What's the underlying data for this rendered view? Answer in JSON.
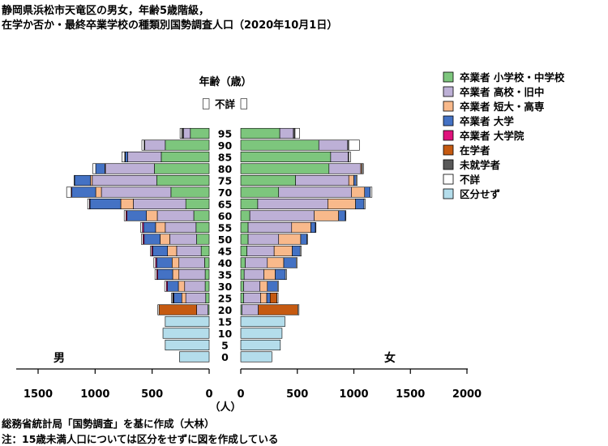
{
  "chart_data": {
    "type": "bar",
    "orientation": "horizontal-stacked-pyramid",
    "title_lines": [
      "静岡県浜松市天竜区の男女，年齢5歳階級，",
      "在学か否か・最終卒業学校の種類別国勢調査人口（2020年10月1日）"
    ],
    "age_axis_title": "年齢（歳）",
    "xlabel": "（人）",
    "left_label": "男",
    "right_label": "女",
    "notes": [
      "総務省統計局「国勢調査」を基に作成（大林）",
      "注：15歳未満人口については区分をせずに図を作成している"
    ],
    "x_ticks_left": [
      "1500",
      "1000",
      "500",
      "0"
    ],
    "x_ticks_right": [
      "0",
      "500",
      "1000",
      "1500",
      "2000"
    ],
    "xlim_left": [
      1700,
      0
    ],
    "xlim_right": [
      0,
      2000
    ],
    "categories": [
      "0",
      "5",
      "10",
      "15",
      "20",
      "25",
      "30",
      "35",
      "40",
      "45",
      "50",
      "55",
      "60",
      "65",
      "70",
      "75",
      "80",
      "85",
      "90",
      "95",
      "不詳"
    ],
    "age_labels": [
      "0",
      "5",
      "10",
      "15",
      "20",
      "25",
      "30",
      "35",
      "40",
      "45",
      "50",
      "55",
      "60",
      "65",
      "70",
      "75",
      "80",
      "85",
      "90",
      "95",
      "不詳"
    ],
    "series": [
      {
        "name": "卒業者 小学校・中学校",
        "color": "#7DC67D",
        "male": [
          0,
          0,
          0,
          0,
          10,
          30,
          35,
          35,
          40,
          70,
          110,
          115,
          135,
          205,
          335,
          460,
          480,
          420,
          385,
          165,
          0
        ],
        "female": [
          0,
          0,
          0,
          0,
          10,
          25,
          25,
          30,
          40,
          55,
          65,
          65,
          80,
          150,
          335,
          485,
          780,
          795,
          690,
          345,
          0
        ]
      },
      {
        "name": "卒業者 高校・旧中",
        "color": "#BDB0D6",
        "male": [
          0,
          0,
          0,
          0,
          100,
          175,
          180,
          230,
          225,
          215,
          235,
          270,
          320,
          460,
          610,
          565,
          430,
          295,
          180,
          60,
          0
        ],
        "female": [
          0,
          0,
          0,
          0,
          145,
          150,
          145,
          175,
          195,
          240,
          270,
          385,
          570,
          620,
          645,
          470,
          280,
          155,
          255,
          120,
          0
        ],
        "female_note": "95 row second segment"
      },
      {
        "name": "卒業者 短大・高専",
        "color": "#F8B98B",
        "male": [
          0,
          0,
          0,
          0,
          0,
          35,
          55,
          55,
          60,
          80,
          85,
          85,
          95,
          110,
          50,
          15,
          5,
          0,
          0,
          0,
          0
        ],
        "female": [
          0,
          0,
          0,
          0,
          0,
          55,
          65,
          100,
          145,
          160,
          195,
          170,
          215,
          245,
          115,
          45,
          10,
          0,
          0,
          0,
          0
        ]
      },
      {
        "name": "卒業者 大学",
        "color": "#4472C4",
        "male": [
          0,
          0,
          0,
          0,
          0,
          70,
          95,
          130,
          135,
          130,
          140,
          105,
          170,
          270,
          210,
          140,
          80,
          20,
          0,
          0,
          0
        ],
        "female": [
          0,
          0,
          0,
          0,
          0,
          30,
          90,
          90,
          110,
          70,
          55,
          40,
          60,
          75,
          50,
          20,
          5,
          0,
          0,
          0,
          0
        ]
      },
      {
        "name": "卒業者 大学院",
        "color": "#E0127C",
        "male": [
          0,
          0,
          0,
          0,
          0,
          5,
          10,
          10,
          10,
          10,
          10,
          10,
          10,
          5,
          5,
          0,
          0,
          0,
          0,
          0,
          0
        ],
        "female": [
          0,
          0,
          0,
          0,
          0,
          0,
          0,
          0,
          0,
          0,
          0,
          0,
          0,
          0,
          0,
          0,
          0,
          0,
          0,
          0,
          0
        ]
      },
      {
        "name": "在学者",
        "color": "#C55A11",
        "male": [
          0,
          0,
          0,
          0,
          330,
          5,
          0,
          0,
          0,
          0,
          0,
          0,
          0,
          0,
          0,
          0,
          0,
          0,
          0,
          0,
          0
        ],
        "female": [
          0,
          0,
          0,
          0,
          350,
          60,
          0,
          0,
          0,
          0,
          0,
          0,
          0,
          0,
          0,
          0,
          0,
          0,
          0,
          0,
          0
        ]
      },
      {
        "name": "未就学者",
        "color": "#595959",
        "male": [
          0,
          0,
          0,
          0,
          0,
          0,
          0,
          0,
          0,
          0,
          0,
          0,
          0,
          0,
          0,
          0,
          0,
          5,
          5,
          15,
          0
        ],
        "female": [
          0,
          0,
          0,
          0,
          0,
          0,
          0,
          0,
          0,
          0,
          0,
          0,
          0,
          0,
          0,
          0,
          0,
          5,
          10,
          15,
          0
        ]
      },
      {
        "name": "不詳",
        "color": "#FFFFFF",
        "male": [
          0,
          0,
          0,
          0,
          10,
          10,
          15,
          15,
          15,
          10,
          15,
          15,
          15,
          15,
          40,
          5,
          25,
          25,
          20,
          15,
          55
        ],
        "female": [
          0,
          0,
          0,
          0,
          10,
          10,
          10,
          10,
          10,
          10,
          5,
          5,
          5,
          10,
          15,
          10,
          10,
          15,
          95,
          40,
          55
        ]
      },
      {
        "name": "区分せず",
        "color": "#B4DDEB",
        "male": [
          260,
          385,
          405,
          385,
          0,
          0,
          0,
          0,
          0,
          0,
          0,
          0,
          0,
          0,
          0,
          0,
          0,
          0,
          0,
          0,
          0
        ],
        "female": [
          275,
          350,
          365,
          390,
          0,
          0,
          0,
          0,
          0,
          0,
          0,
          0,
          0,
          0,
          0,
          0,
          0,
          0,
          0,
          0,
          0
        ]
      }
    ],
    "legend_position": "right",
    "grid": false
  }
}
